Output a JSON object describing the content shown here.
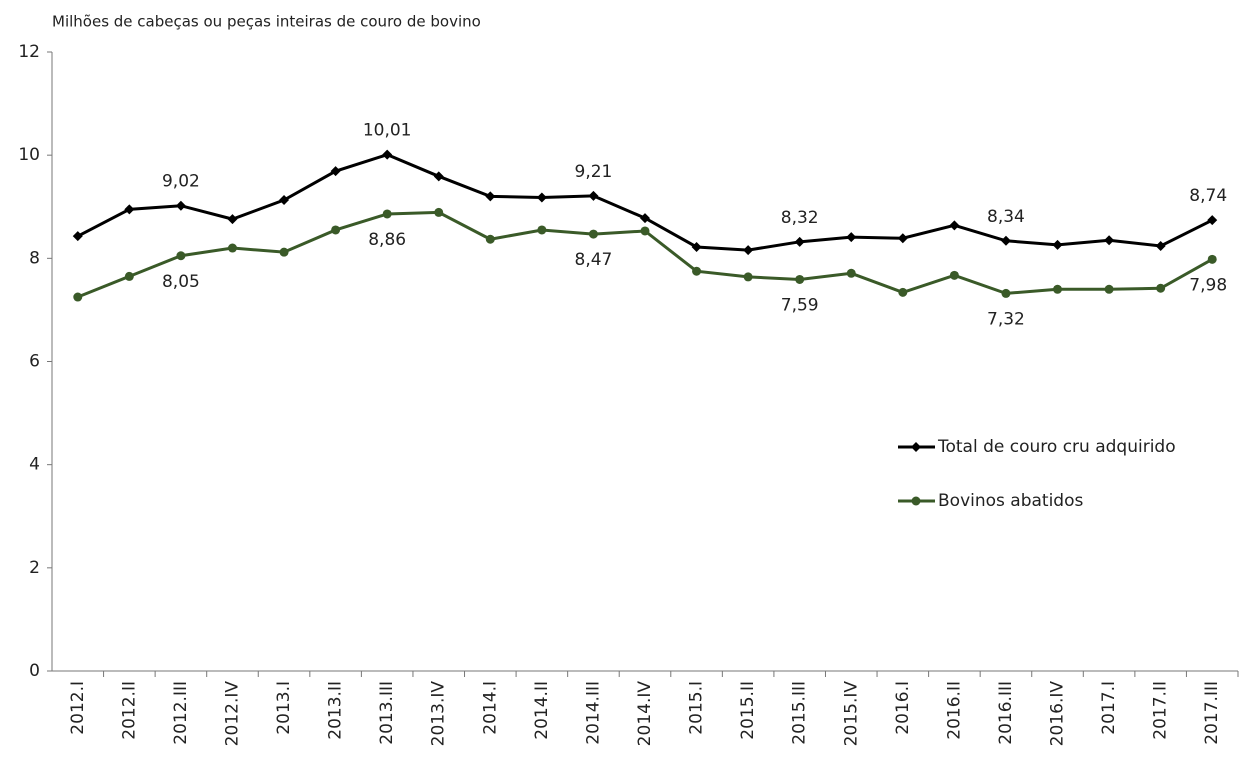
{
  "chart_data": {
    "type": "line",
    "title": "Milhões de cabeças ou peças inteiras de couro de bovino",
    "categories": [
      "2012.I",
      "2012.II",
      "2012.III",
      "2012.IV",
      "2013.I",
      "2013.II",
      "2013.III",
      "2013.IV",
      "2014.I",
      "2014.II",
      "2014.III",
      "2014.IV",
      "2015.I",
      "2015.II",
      "2015.III",
      "2015.IV",
      "2016.I",
      "2016.II",
      "2016.III",
      "2016.IV",
      "2017.I",
      "2017.II",
      "2017.III"
    ],
    "series": [
      {
        "name": "Total de couro cru adquirido",
        "color": "#000000",
        "marker": "diamond",
        "values": [
          8.43,
          8.95,
          9.02,
          8.76,
          9.13,
          9.69,
          10.01,
          9.59,
          9.2,
          9.18,
          9.21,
          8.78,
          8.22,
          8.16,
          8.32,
          8.41,
          8.39,
          8.64,
          8.34,
          8.26,
          8.35,
          8.24,
          8.74
        ],
        "value_labels": [
          null,
          null,
          "9,02",
          null,
          null,
          null,
          "10,01",
          null,
          null,
          null,
          "9,21",
          null,
          null,
          null,
          "8,32",
          null,
          null,
          null,
          "8,34",
          null,
          null,
          null,
          "8,74"
        ]
      },
      {
        "name": "Bovinos abatidos",
        "color": "#3a5a28",
        "marker": "circle",
        "values": [
          7.25,
          7.65,
          8.05,
          8.2,
          8.12,
          8.55,
          8.86,
          8.89,
          8.37,
          8.55,
          8.47,
          8.53,
          7.75,
          7.64,
          7.59,
          7.71,
          7.34,
          7.67,
          7.32,
          7.4,
          7.4,
          7.42,
          7.98
        ],
        "value_labels": [
          null,
          null,
          "8,05",
          null,
          null,
          null,
          "8,86",
          null,
          null,
          null,
          "8,47",
          null,
          null,
          null,
          "7,59",
          null,
          null,
          null,
          "7,32",
          null,
          null,
          null,
          "7,98"
        ]
      }
    ],
    "ylim": [
      0,
      12
    ],
    "yticks": [
      0,
      2,
      4,
      6,
      8,
      10,
      12
    ],
    "grid": false,
    "legend": "right"
  }
}
